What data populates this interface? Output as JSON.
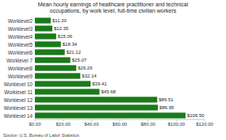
{
  "chart_data": {
    "type": "bar",
    "orientation": "horizontal",
    "title": "Mean hourly earnings of healthcare practitioner and technical\noccupations, by work level, full-time civilian workers",
    "categories": [
      "Worklevel2",
      "Worklevel3",
      "Worklevel4",
      "Worklevel5",
      "Worklevel6",
      "Worklevel 7",
      "Worklevel8",
      "Worklevel9",
      "Worklevel 10",
      "Worklevel 11",
      "Worklevel 12",
      "Worklevel 13",
      "Worklevel 14"
    ],
    "values": [
      11.2,
      12.35,
      15.06,
      18.34,
      21.12,
      25.07,
      29.26,
      32.14,
      39.41,
      45.68,
      86.51,
      86.95,
      106.5
    ],
    "value_labels": [
      "$11.20",
      "$12.35",
      "$15.06",
      "$18.34",
      "$21.12",
      "$25.07",
      "$29.26",
      "$32.14",
      "$39.41",
      "$45.68",
      "$86.51",
      "$86.95",
      "$106.50"
    ],
    "data_labels": true,
    "color": "#1a7a1a",
    "xlim": [
      0,
      120
    ],
    "xticks": [
      {
        "value": 0,
        "label": "$0.00"
      },
      {
        "value": 20,
        "label": "$20.00"
      },
      {
        "value": 40,
        "label": "$40.00"
      },
      {
        "value": 60,
        "label": "$60.00"
      },
      {
        "value": 80,
        "label": "$80.00"
      },
      {
        "value": 100,
        "label": "$100.00"
      },
      {
        "value": 120,
        "label": "$120.00"
      }
    ],
    "grid": false,
    "source": "Source: U.S. Bureau of Labor Statistics"
  }
}
